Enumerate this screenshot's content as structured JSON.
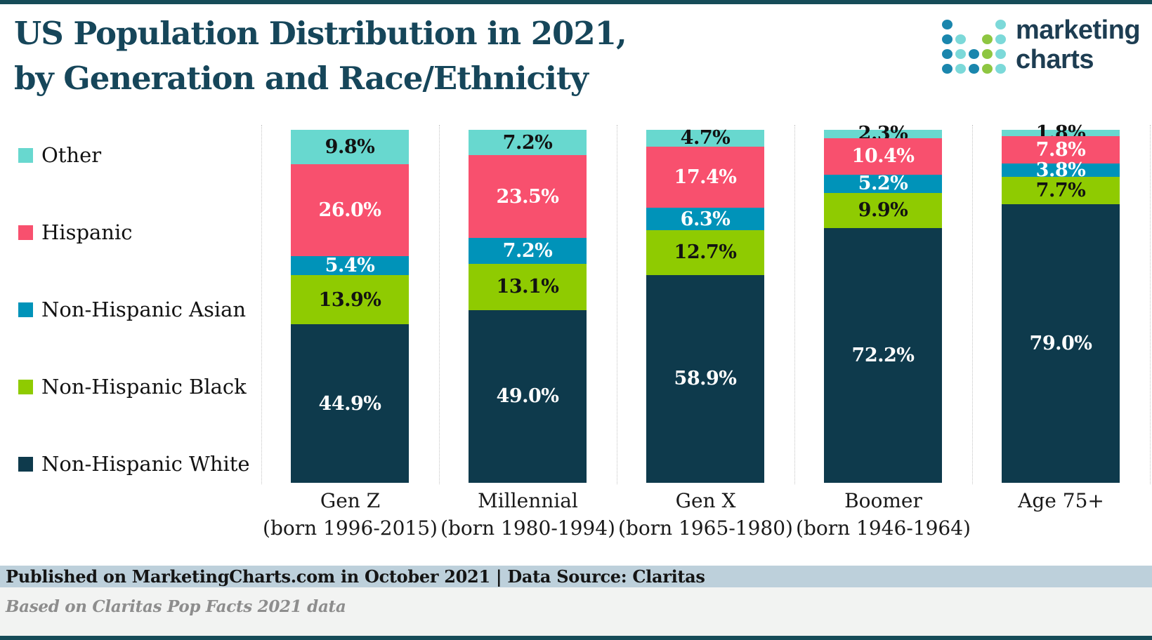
{
  "page": {
    "title_line1": "US Population Distribution in 2021,",
    "title_line2": "by Generation and Race/Ethnicity"
  },
  "logo": {
    "text_line1": "marketing",
    "text_line2": "charts",
    "dot_colors": {
      "b": "#1a86ad",
      "t": "#7cd9d9",
      "g": "#8ec641"
    },
    "dot_pattern": [
      [
        "b",
        "",
        "",
        "",
        "t"
      ],
      [
        "b",
        "t",
        "",
        "g",
        "t"
      ],
      [
        "b",
        "t",
        "b",
        "g",
        "t"
      ],
      [
        "b",
        "t",
        "b",
        "g",
        "t"
      ]
    ]
  },
  "chart_data": {
    "type": "stacked-bar",
    "unit": "%",
    "ylim": [
      0,
      100
    ],
    "legend_position": "left",
    "grid": "dotted-column-separators",
    "categories": [
      {
        "label": "Gen Z",
        "sublabel": "(born 1996-2015)"
      },
      {
        "label": "Millennial",
        "sublabel": "(born 1980-1994)"
      },
      {
        "label": "Gen X",
        "sublabel": "(born 1965-1980)"
      },
      {
        "label": "Boomer",
        "sublabel": "(born 1946-1964)"
      },
      {
        "label": "Age 75+",
        "sublabel": ""
      }
    ],
    "series": [
      {
        "name": "Other",
        "color": "#68d8cf",
        "label_color": "#121212",
        "values": [
          9.8,
          7.2,
          4.7,
          2.3,
          1.8
        ]
      },
      {
        "name": "Hispanic",
        "color": "#f8506e",
        "label_color": "#ffffff",
        "values": [
          26.0,
          23.5,
          17.4,
          10.4,
          7.8
        ]
      },
      {
        "name": "Non-Hispanic Asian",
        "color": "#0093b9",
        "label_color": "#ffffff",
        "values": [
          5.4,
          7.2,
          6.3,
          5.2,
          3.8
        ]
      },
      {
        "name": "Non-Hispanic Black",
        "color": "#8fcb01",
        "label_color": "#121212",
        "values": [
          13.9,
          13.1,
          12.7,
          9.9,
          7.7
        ]
      },
      {
        "name": "Non-Hispanic White",
        "color": "#0e3a4c",
        "label_color": "#ffffff",
        "values": [
          44.9,
          49.0,
          58.9,
          72.2,
          79.0
        ]
      }
    ]
  },
  "footer": {
    "published_line": "Published on MarketingCharts.com in October 2021 | Data Source: Claritas",
    "source_note": "Based on Claritas Pop Facts 2021 data"
  }
}
